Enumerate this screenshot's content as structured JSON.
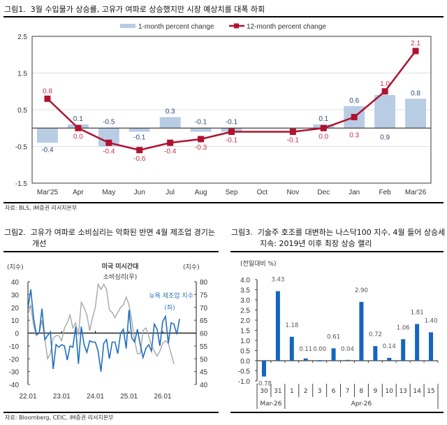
{
  "figure1": {
    "title_num": "그림1.",
    "title": "3월 수입물가 상승률, 고유가 여파로 상승했지만 시장 예상치를 대폭 하회",
    "source": "자료: BLS, iM증권 리서치본부"
  },
  "figure2": {
    "title_num": "그림2.",
    "title_line1": "고유가 여파로 소비심리는 악화된 반면 4월 제조업 경기는",
    "title_line2": "개선",
    "source": "자료: Bloomberg, CEIC, iM증권 리서치본부"
  },
  "figure3": {
    "title_num": "그림3.",
    "title_line1": "기술주 호조를 대변하는 나스닥100 지수, 4월 들어 상승세",
    "title_line2": "지속: 2019년 이후 최장 상승 랠리"
  },
  "colors": {
    "bar_light_blue": "#b8cce4",
    "line_red": "#b0122f",
    "label_blue": "#2f4a7a",
    "label_red": "#c0354a",
    "nymfg_blue": "#1f6fbf",
    "umich_gray": "#a6a6a6",
    "nasdaq_bar": "#1565c0"
  },
  "chart_data": [
    {
      "type": "bar",
      "title": "",
      "categories": [
        "Mar'25",
        "Apr",
        "May",
        "Jun",
        "Jul",
        "Aug",
        "Sep",
        "Oct",
        "Nov",
        "Dec",
        "Jan",
        "Feb",
        "Mar'26"
      ],
      "series": [
        {
          "name": "1-month percent change",
          "kind": "bar",
          "values": [
            -0.4,
            0.1,
            -0.5,
            -0.1,
            0.3,
            -0.1,
            -0.1,
            null,
            null,
            0.1,
            0.6,
            0.9,
            0.8
          ],
          "labels": [
            "-0.4",
            "0.1",
            "-0.5",
            "-0.1",
            "0.3",
            "-0.1",
            "-0.1",
            "",
            "",
            "0.1",
            "0.6",
            "0.9",
            "0.8"
          ]
        },
        {
          "name": "12-month percent change",
          "kind": "line",
          "values": [
            0.8,
            0.0,
            -0.4,
            -0.6,
            -0.4,
            -0.3,
            -0.1,
            null,
            -0.1,
            0.0,
            0.3,
            1.0,
            2.1
          ],
          "labels": [
            "0.8",
            "0.0",
            "-0.4",
            "-0.6",
            "-0.4",
            "-0.3",
            "-0.1",
            "",
            "-0.1",
            "0.0",
            "0.3",
            "1.0",
            "2.1"
          ]
        }
      ],
      "yticks": [
        "2.5",
        "1.5",
        "0.5",
        "-0.5",
        "-1.5"
      ],
      "ylim": [
        -1.5,
        2.5
      ],
      "xlabel": "",
      "ylabel": "",
      "grid": true,
      "legend": "top-center"
    },
    {
      "type": "line",
      "title": "미국 미시간대 소비심리(우)",
      "title_line1": "미국 미시간대",
      "title_line2": "소비심리(우)",
      "left_unit": "(지수)",
      "right_unit": "(지수)",
      "xticks": [
        "22.01",
        "23.01",
        "24.01",
        "25.01",
        "26.01"
      ],
      "left_yticks": [
        "40",
        "30",
        "20",
        "10",
        "0",
        "-10",
        "-20",
        "-30",
        "-40"
      ],
      "right_yticks": [
        "80",
        "75",
        "70",
        "65",
        "60",
        "55",
        "50",
        "45",
        "40"
      ],
      "left_ylim": [
        -40,
        40
      ],
      "right_ylim": [
        40,
        80
      ],
      "x_start": "2022-01",
      "series": [
        {
          "name": "뉴욕 제조업 지수(좌)",
          "label_line1": "뉴욕 제조업 지수",
          "label_line2": "(좌)",
          "axis": "left",
          "values": [
            19,
            34,
            12,
            -1,
            0,
            19,
            -5,
            -2,
            1,
            -28,
            -9,
            -11,
            -9,
            -10,
            -21,
            -10,
            -11,
            5,
            -24,
            5,
            -9,
            -15,
            -6,
            -7,
            -7,
            -14,
            -30,
            -8,
            -5,
            -20,
            -7,
            -7,
            -16,
            0,
            3,
            -12,
            18,
            -4,
            -7,
            3,
            -9,
            -19,
            -12,
            -9,
            -14,
            7,
            3,
            -10,
            9,
            13,
            -8,
            8,
            7,
            -1,
            11
          ]
        },
        {
          "name": "미국 미시간대 소비심리(우)",
          "axis": "right",
          "values": [
            67,
            71,
            63,
            59,
            60,
            65,
            58,
            50,
            52,
            58,
            59,
            59,
            57,
            62,
            64,
            67,
            62,
            64,
            59,
            72,
            70,
            67,
            61,
            66,
            70,
            79,
            77,
            79,
            77,
            69,
            68,
            66,
            68,
            70,
            71,
            74,
            71,
            65,
            57,
            52,
            52,
            61,
            62,
            59,
            55,
            53,
            51,
            53,
            56,
            57,
            56,
            52,
            48
          ]
        }
      ],
      "legend": "inline-labels"
    },
    {
      "type": "bar",
      "title": "",
      "ylabel": "(전일대비 %)",
      "categories": [
        "30",
        "31",
        "1",
        "2",
        "3",
        "6",
        "7",
        "8",
        "9",
        "10",
        "13",
        "14",
        "15"
      ],
      "groups": [
        {
          "label": "Mar-26",
          "from": 0,
          "to": 1
        },
        {
          "label": "Apr-26",
          "from": 2,
          "to": 12
        }
      ],
      "values": [
        -0.78,
        3.43,
        1.18,
        0.11,
        0.0,
        0.61,
        0.04,
        2.9,
        0.72,
        0.14,
        1.06,
        1.81,
        1.4
      ],
      "labels": [
        "-0.78",
        "3.43",
        "1.18",
        "0.11",
        "0.00",
        "0.61",
        "0.04",
        "2.90",
        "0.72",
        "0.14",
        "1.06",
        "1.81",
        "1.40"
      ],
      "yticks": [
        "4.0",
        "3.5",
        "3.0",
        "2.5",
        "2.0",
        "1.5",
        "1.0",
        "0.5",
        "0.0",
        "-0.5",
        "-1.0"
      ],
      "ylim": [
        -1.0,
        4.0
      ]
    }
  ]
}
